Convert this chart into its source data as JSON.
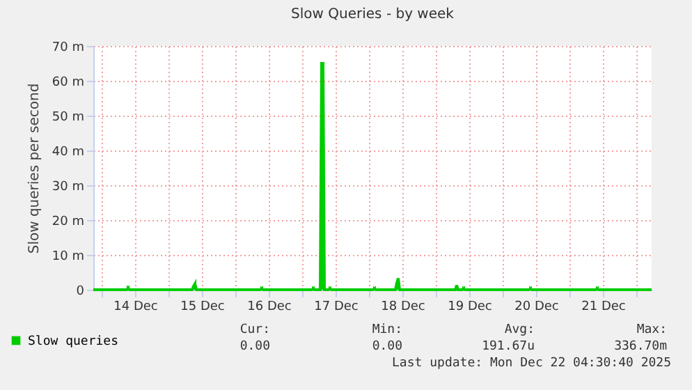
{
  "chart_data": {
    "type": "area",
    "title": "Slow Queries - by week",
    "ylabel": "Slow queries per second",
    "x": [
      "2025-12-13T21:00",
      "2025-12-14T09:00",
      "2025-12-14T09:30",
      "2025-12-14T10:00",
      "2025-12-15T08:30",
      "2025-12-15T09:00",
      "2025-12-15T09:30",
      "2025-12-15T10:00",
      "2025-12-16T09:00",
      "2025-12-16T09:30",
      "2025-12-16T10:00",
      "2025-12-17T03:30",
      "2025-12-17T04:00",
      "2025-12-17T04:30",
      "2025-12-17T06:30",
      "2025-12-17T07:00",
      "2025-12-17T07:30",
      "2025-12-17T08:00",
      "2025-12-17T09:30",
      "2025-12-17T10:00",
      "2025-12-17T10:30",
      "2025-12-18T01:30",
      "2025-12-18T02:00",
      "2025-12-18T02:30",
      "2025-12-18T09:30",
      "2025-12-18T10:00",
      "2025-12-18T10:30",
      "2025-12-18T11:00",
      "2025-12-19T07:00",
      "2025-12-19T07:30",
      "2025-12-19T08:00",
      "2025-12-19T09:30",
      "2025-12-19T10:00",
      "2025-12-19T10:30",
      "2025-12-20T09:30",
      "2025-12-20T10:00",
      "2025-12-20T10:30",
      "2025-12-21T09:30",
      "2025-12-21T10:00",
      "2025-12-21T10:30",
      "2025-12-22T05:30"
    ],
    "series": [
      {
        "name": "Slow queries",
        "color": "#00cc00",
        "values": [
          0,
          0,
          0.4,
          0,
          0,
          1.0,
          1.7,
          0,
          0,
          0.3,
          0,
          0,
          0.3,
          0,
          0,
          65,
          65,
          0,
          0,
          0.3,
          0,
          0,
          0.3,
          0,
          0,
          2.0,
          3.3,
          0,
          0,
          1.3,
          0,
          0,
          0.3,
          0,
          0,
          0.3,
          0,
          0,
          0.3,
          0,
          0
        ]
      }
    ],
    "xlim": [
      "2025-12-13T21:00",
      "2025-12-22T05:30"
    ],
    "xticks": [
      {
        "value": "2025-12-14T00:00",
        "label": null
      },
      {
        "value": "2025-12-14T12:00",
        "label": "14 Dec"
      },
      {
        "value": "2025-12-15T00:00",
        "label": null
      },
      {
        "value": "2025-12-15T12:00",
        "label": "15 Dec"
      },
      {
        "value": "2025-12-16T00:00",
        "label": null
      },
      {
        "value": "2025-12-16T12:00",
        "label": "16 Dec"
      },
      {
        "value": "2025-12-17T00:00",
        "label": null
      },
      {
        "value": "2025-12-17T12:00",
        "label": "17 Dec"
      },
      {
        "value": "2025-12-18T00:00",
        "label": null
      },
      {
        "value": "2025-12-18T12:00",
        "label": "18 Dec"
      },
      {
        "value": "2025-12-19T00:00",
        "label": null
      },
      {
        "value": "2025-12-19T12:00",
        "label": "19 Dec"
      },
      {
        "value": "2025-12-20T00:00",
        "label": null
      },
      {
        "value": "2025-12-20T12:00",
        "label": "20 Dec"
      },
      {
        "value": "2025-12-21T00:00",
        "label": null
      },
      {
        "value": "2025-12-21T12:00",
        "label": "21 Dec"
      },
      {
        "value": "2025-12-22T00:00",
        "label": null
      }
    ],
    "ylim": [
      0,
      70
    ],
    "yticks": [
      0,
      {
        "value": 10,
        "label": "10 m"
      },
      {
        "value": 20,
        "label": "20 m"
      },
      {
        "value": 30,
        "label": "30 m"
      },
      {
        "value": 40,
        "label": "40 m"
      },
      {
        "value": 50,
        "label": "50 m"
      },
      {
        "value": 60,
        "label": "60 m"
      },
      {
        "value": 70,
        "label": "70 m"
      }
    ],
    "grid": true,
    "legend": "bottom",
    "annotations": [
      "Cur:",
      "0.00",
      "Min:",
      "0.00",
      "Avg:",
      "191.67u",
      "Max:",
      "336.70m",
      "Last update: Mon Dec 22 04:30:40 2025"
    ]
  }
}
